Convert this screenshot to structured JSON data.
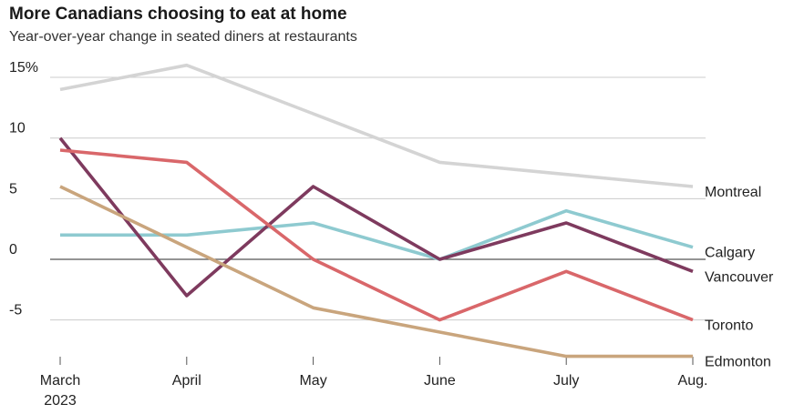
{
  "title": "More Canadians choosing to eat at home",
  "subtitle": "Year-over-year change in seated diners at restaurants",
  "chart_data": {
    "type": "line",
    "title": "More Canadians choosing to eat at home",
    "subtitle": "Year-over-year change in seated diners at restaurants",
    "categories": [
      "March\n2023",
      "April",
      "May",
      "June",
      "July",
      "Aug."
    ],
    "x_tick_labels": [
      [
        "March",
        "2023"
      ],
      [
        "April"
      ],
      [
        "May"
      ],
      [
        "June"
      ],
      [
        "July"
      ],
      [
        "Aug."
      ]
    ],
    "ylim": [
      -8,
      16
    ],
    "y_ticks": [
      15,
      10,
      5,
      0,
      -5
    ],
    "y_tick_labels": [
      "15%",
      "10",
      "5",
      "0",
      "-5"
    ],
    "grid": true,
    "legend": "end-of-line labels",
    "series": [
      {
        "name": "Montreal",
        "color": "#d4d4d4",
        "values": [
          14,
          16,
          12,
          8,
          7,
          6
        ]
      },
      {
        "name": "Calgary",
        "color": "#8ecad0",
        "values": [
          2,
          2,
          3,
          0,
          4,
          1
        ]
      },
      {
        "name": "Vancouver",
        "color": "#7e3a5e",
        "values": [
          10,
          -3,
          6,
          0,
          3,
          -1
        ]
      },
      {
        "name": "Toronto",
        "color": "#d9676a",
        "values": [
          9,
          8,
          0,
          -5,
          -1,
          -5
        ]
      },
      {
        "name": "Edmonton",
        "color": "#c9a57d",
        "values": [
          6,
          1,
          -4,
          -6,
          -8,
          -8
        ]
      }
    ]
  }
}
